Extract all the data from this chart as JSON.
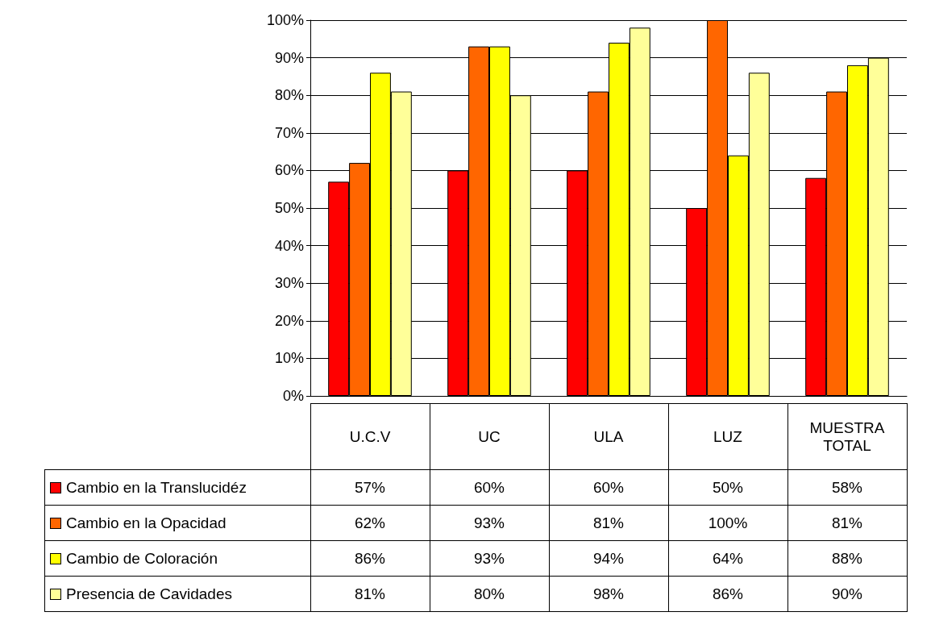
{
  "chart_data": {
    "type": "bar",
    "categories": [
      "U.C.V",
      "UC",
      "ULA",
      "LUZ",
      "MUESTRA TOTAL"
    ],
    "series": [
      {
        "name": "Cambio en la Translucidéz",
        "color": "#ff0000",
        "values": [
          57,
          60,
          60,
          50,
          58
        ],
        "value_labels": [
          "57%",
          "60%",
          "60%",
          "50%",
          "58%"
        ]
      },
      {
        "name": "Cambio en la Opacidad",
        "color": "#ff6600",
        "values": [
          62,
          93,
          81,
          100,
          81
        ],
        "value_labels": [
          "62%",
          "93%",
          "81%",
          "100%",
          "81%"
        ]
      },
      {
        "name": "Cambio de Coloración",
        "color": "#ffff00",
        "values": [
          86,
          93,
          94,
          64,
          88
        ],
        "value_labels": [
          "86%",
          "93%",
          "94%",
          "64%",
          "88%"
        ]
      },
      {
        "name": "Presencia de Cavidades",
        "color": "#ffff99",
        "values": [
          81,
          80,
          98,
          86,
          90
        ],
        "value_labels": [
          "81%",
          "80%",
          "98%",
          "86%",
          "90%"
        ]
      }
    ],
    "ylim": [
      0,
      100
    ],
    "yticks": [
      {
        "value": 0,
        "label": "0%"
      },
      {
        "value": 10,
        "label": "10%"
      },
      {
        "value": 20,
        "label": "20%"
      },
      {
        "value": 30,
        "label": "30%"
      },
      {
        "value": 40,
        "label": "40%"
      },
      {
        "value": 50,
        "label": "50%"
      },
      {
        "value": 60,
        "label": "60%"
      },
      {
        "value": 70,
        "label": "70%"
      },
      {
        "value": 80,
        "label": "80%"
      },
      {
        "value": 90,
        "label": "90%"
      },
      {
        "value": 100,
        "label": "100%"
      }
    ],
    "grid": "y",
    "legend": "bottom left"
  }
}
